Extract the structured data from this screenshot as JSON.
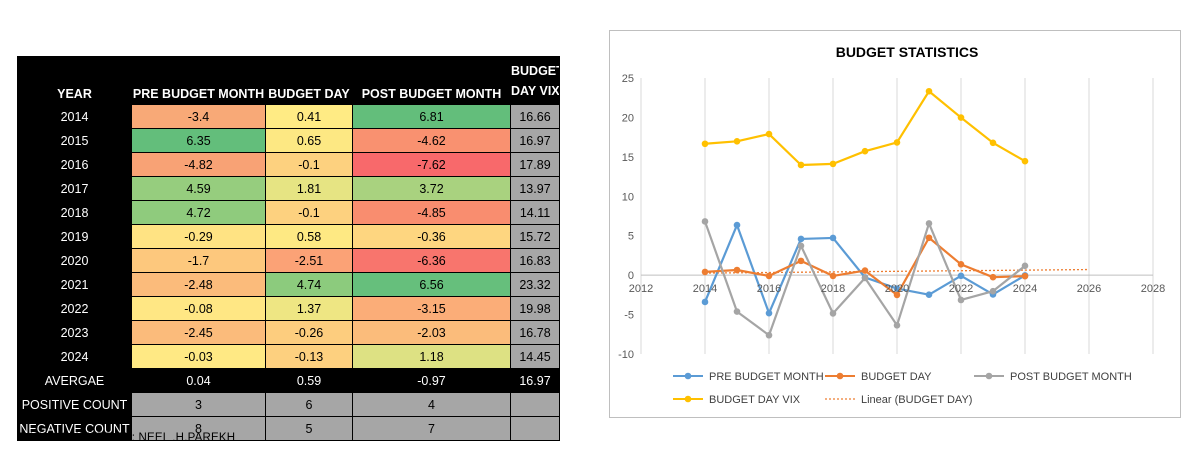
{
  "table": {
    "headers": {
      "year": "YEAR",
      "pre": "PRE BUDGET  MONTH",
      "day": "BUDGET  DAY",
      "post": "POST BUDGET MONTH",
      "vix_line1": "BUDGET",
      "vix_line2": "DAY VIX"
    },
    "rows": [
      {
        "year": "2014",
        "pre": "-3.4",
        "day": "0.41",
        "post": "6.81",
        "vix": "16.66",
        "pre_color": "#f8a977",
        "day_color": "#ffeb84",
        "post_color": "#63be7b"
      },
      {
        "year": "2015",
        "pre": "6.35",
        "day": "0.65",
        "post": "-4.62",
        "vix": "16.97",
        "pre_color": "#63be7b",
        "day_color": "#fde883",
        "post_color": "#f99170"
      },
      {
        "year": "2016",
        "pre": "-4.82",
        "day": "-0.1",
        "post": "-7.62",
        "vix": "17.89",
        "pre_color": "#f8a275",
        "day_color": "#fdd17f",
        "post_color": "#f8696b"
      },
      {
        "year": "2017",
        "pre": "4.59",
        "day": "1.81",
        "post": "3.72",
        "vix": "13.97",
        "pre_color": "#96cd7e",
        "day_color": "#e6e483",
        "post_color": "#a9d27f"
      },
      {
        "year": "2018",
        "pre": "4.72",
        "day": "-0.1",
        "post": "-4.85",
        "vix": "14.11",
        "pre_color": "#8fcb7d",
        "day_color": "#fdd17f",
        "post_color": "#f98d6f"
      },
      {
        "year": "2019",
        "pre": "-0.29",
        "day": "0.58",
        "post": "-0.36",
        "vix": "15.72",
        "pre_color": "#ffe383",
        "day_color": "#fee983",
        "post_color": "#fed680"
      },
      {
        "year": "2020",
        "pre": "-1.7",
        "day": "-2.51",
        "post": "-6.36",
        "vix": "16.83",
        "pre_color": "#fdc87d",
        "day_color": "#fba276",
        "post_color": "#f8756d"
      },
      {
        "year": "2021",
        "pre": "-2.48",
        "day": "4.74",
        "post": "6.56",
        "vix": "23.32",
        "pre_color": "#fbbb7b",
        "day_color": "#8ccb7d",
        "post_color": "#66bf7c"
      },
      {
        "year": "2022",
        "pre": "-0.08",
        "day": "1.37",
        "post": "-3.15",
        "vix": "19.98",
        "pre_color": "#ffe784",
        "day_color": "#eee683",
        "post_color": "#fbad78"
      },
      {
        "year": "2023",
        "pre": "-2.45",
        "day": "-0.26",
        "post": "-2.03",
        "vix": "16.78",
        "pre_color": "#fbbb7b",
        "day_color": "#fdcd7e",
        "post_color": "#fbbc7b"
      },
      {
        "year": "2024",
        "pre": "-0.03",
        "day": "-0.13",
        "post": "1.18",
        "vix": "14.45",
        "pre_color": "#ffe984",
        "day_color": "#fdd07f",
        "post_color": "#dde183"
      }
    ],
    "average": {
      "label": "AVERGAE",
      "pre": "0.04",
      "day": "0.59",
      "post": "-0.97",
      "vix": "16.97"
    },
    "positive": {
      "label": "POSITIVE COUNT",
      "pre": "3",
      "day": "6",
      "post": "4"
    },
    "negative": {
      "label": "NEGATIVE COUNT",
      "pre": "8",
      "day": "5",
      "post": "7"
    }
  },
  "chart_data": {
    "type": "line",
    "title": "BUDGET STATISTICS",
    "xlabel": "",
    "ylabel": "",
    "xlim": [
      2012,
      2028
    ],
    "ylim": [
      -10,
      25
    ],
    "xticks": [
      2012,
      2014,
      2016,
      2018,
      2020,
      2022,
      2024,
      2026,
      2028
    ],
    "yticks": [
      -10,
      -5,
      0,
      5,
      10,
      15,
      20,
      25
    ],
    "grid": "vertical",
    "x": [
      2014,
      2015,
      2016,
      2017,
      2018,
      2019,
      2020,
      2021,
      2022,
      2023,
      2024
    ],
    "series": [
      {
        "name": "PRE BUDGET  MONTH",
        "color": "#5b9bd5",
        "values": [
          -3.4,
          6.35,
          -4.82,
          4.59,
          4.72,
          -0.29,
          -1.7,
          -2.48,
          -0.08,
          -2.45,
          -0.03
        ]
      },
      {
        "name": "BUDGET  DAY",
        "color": "#ed7d31",
        "values": [
          0.41,
          0.65,
          -0.1,
          1.81,
          -0.1,
          0.58,
          -2.51,
          4.74,
          1.37,
          -0.26,
          -0.13
        ]
      },
      {
        "name": "POST BUDGET MONTH",
        "color": "#a5a5a5",
        "values": [
          6.81,
          -4.62,
          -7.62,
          3.72,
          -4.85,
          -0.36,
          -6.36,
          6.56,
          -3.15,
          -2.03,
          1.18
        ]
      },
      {
        "name": "BUDGET DAY VIX",
        "color": "#ffc000",
        "values": [
          16.66,
          16.97,
          17.89,
          13.97,
          14.11,
          15.72,
          16.83,
          23.32,
          19.98,
          16.78,
          14.45
        ]
      }
    ],
    "trendline": {
      "name": "Linear (BUDGET  DAY)",
      "color": "#ed7d31",
      "x": [
        2014,
        2026
      ],
      "values": [
        0.26,
        0.71
      ]
    },
    "legend": "bottom"
  },
  "credit": "DATA COMPILED BY: NEEL .H.PAREKH"
}
